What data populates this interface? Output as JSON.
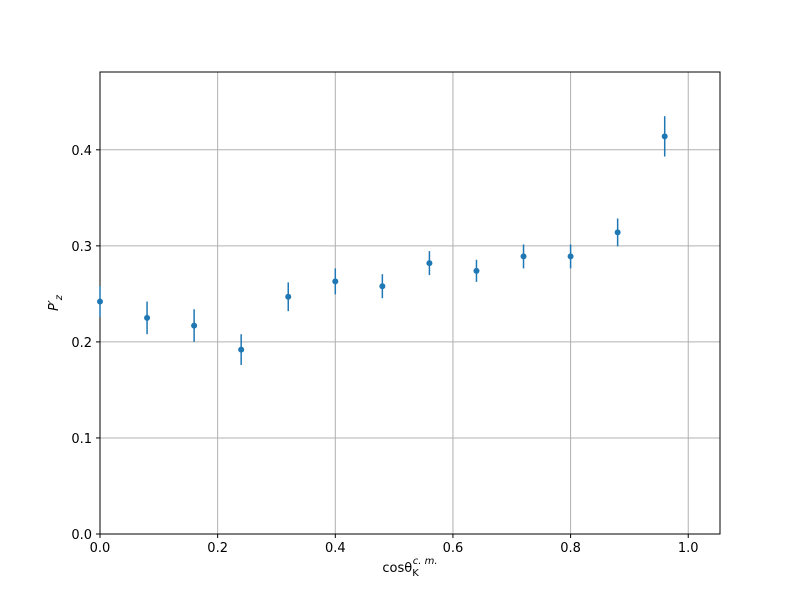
{
  "chart_data": {
    "type": "errorbar",
    "xlabel": "cosθ",
    "xlabel_sub": "K",
    "xlabel_sup": "c. m.",
    "ylabel": "P′",
    "ylabel_sub": "z",
    "x": [
      0,
      0.08,
      0.16,
      0.24,
      0.32,
      0.4,
      0.48,
      0.56,
      0.64,
      0.72,
      0.8,
      0.88,
      0.96
    ],
    "values": [
      0.242,
      0.225,
      0.217,
      0.192,
      0.247,
      0.263,
      0.258,
      0.282,
      0.274,
      0.289,
      0.289,
      0.314,
      0.414
    ],
    "errors": [
      0.016,
      0.017,
      0.017,
      0.016,
      0.015,
      0.0135,
      0.0125,
      0.0125,
      0.0115,
      0.0125,
      0.0125,
      0.0145,
      0.021
    ],
    "color": "#1f77b4",
    "xlim": [
      0,
      1.054
    ],
    "ylim": [
      0,
      0.481
    ],
    "xticks": [
      {
        "value": 0,
        "label": "0.0"
      },
      {
        "value": 0.2,
        "label": "0.2"
      },
      {
        "value": 0.4,
        "label": "0.4"
      },
      {
        "value": 0.6,
        "label": "0.6"
      },
      {
        "value": 0.8,
        "label": "0.8"
      },
      {
        "value": 1.0,
        "label": "1.0"
      }
    ],
    "yticks": [
      {
        "value": 0,
        "label": "0.0"
      },
      {
        "value": 0.1,
        "label": "0.1"
      },
      {
        "value": 0.2,
        "label": "0.2"
      },
      {
        "value": 0.3,
        "label": "0.3"
      },
      {
        "value": 0.4,
        "label": "0.4"
      }
    ],
    "grid": true
  }
}
